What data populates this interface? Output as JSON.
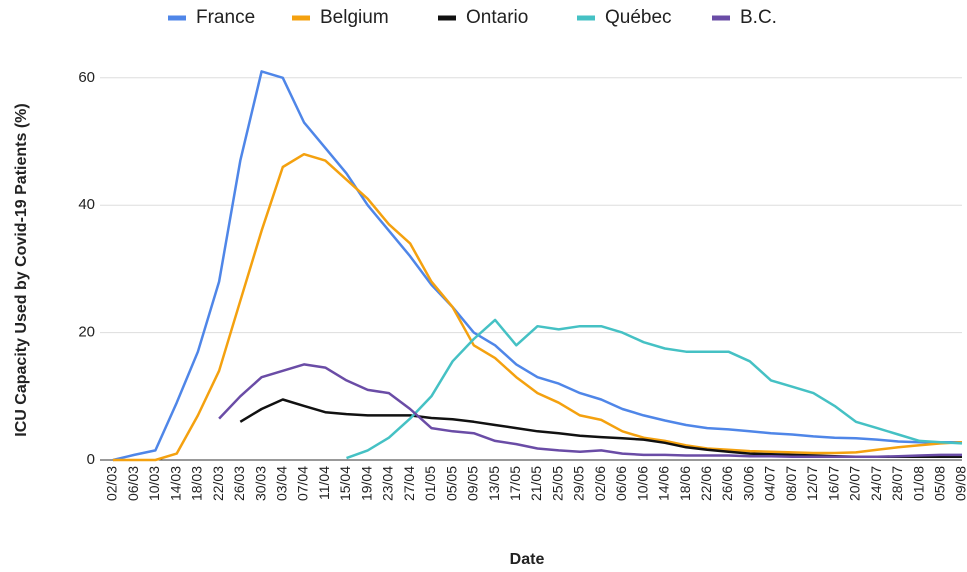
{
  "chart_data": {
    "type": "line",
    "x_label": "Date",
    "y_label": "ICU Capacity Used by Covid-19 Patients (%)",
    "categories": [
      "02/03",
      "06/03",
      "10/03",
      "14/03",
      "18/03",
      "22/03",
      "26/03",
      "30/03",
      "03/04",
      "07/04",
      "11/04",
      "15/04",
      "19/04",
      "23/04",
      "27/04",
      "01/05",
      "05/05",
      "09/05",
      "13/05",
      "17/05",
      "21/05",
      "25/05",
      "29/05",
      "02/06",
      "06/06",
      "10/06",
      "14/06",
      "18/06",
      "22/06",
      "26/06",
      "30/06",
      "04/07",
      "08/07",
      "12/07",
      "16/07",
      "20/07",
      "24/07",
      "28/07",
      "01/08",
      "05/08",
      "09/08"
    ],
    "series": [
      {
        "name": "France",
        "color": "#4f86e8",
        "values": [
          0,
          0.8,
          1.5,
          9,
          17,
          28,
          47,
          61,
          60,
          53,
          49,
          45,
          40,
          36,
          32,
          27.5,
          24,
          20,
          18,
          15,
          13,
          12,
          10.5,
          9.5,
          8,
          7,
          6.2,
          5.5,
          5,
          4.8,
          4.5,
          4.2,
          4,
          3.7,
          3.5,
          3.4,
          3.2,
          2.9,
          2.8,
          2.8,
          2.8
        ]
      },
      {
        "name": "Belgium",
        "color": "#f4a10f",
        "values": [
          0,
          0,
          0,
          1,
          7,
          14,
          25,
          36,
          46,
          48,
          47,
          44,
          41,
          37,
          34,
          28,
          24,
          18,
          16,
          13,
          10.5,
          9,
          7,
          6.3,
          4.5,
          3.5,
          3,
          2.3,
          1.8,
          1.6,
          1.4,
          1.3,
          1.2,
          1.1,
          1.1,
          1.2,
          1.6,
          2,
          2.3,
          2.6,
          2.8
        ]
      },
      {
        "name": "Ontario",
        "color": "#111111",
        "values": [
          null,
          null,
          null,
          null,
          null,
          null,
          6,
          8,
          9.5,
          8.5,
          7.5,
          7.2,
          7,
          7,
          7,
          6.6,
          6.4,
          6,
          5.5,
          5,
          4.5,
          4.2,
          3.8,
          3.6,
          3.4,
          3.2,
          2.7,
          2,
          1.6,
          1.3,
          1,
          0.9,
          0.8,
          0.7,
          0.6,
          0.5,
          0.5,
          0.5,
          0.5,
          0.5,
          0.5
        ]
      },
      {
        "name": "Québec",
        "color": "#45c1c4",
        "values": [
          null,
          null,
          null,
          null,
          null,
          null,
          null,
          null,
          null,
          null,
          null,
          0.3,
          1.5,
          3.5,
          6.5,
          10,
          15.5,
          19,
          22,
          18,
          21,
          20.5,
          21,
          21,
          20,
          18.5,
          17.5,
          17,
          17,
          17,
          15.5,
          12.5,
          11.5,
          10.5,
          8.5,
          6,
          5,
          4,
          3,
          2.8,
          2.6
        ]
      },
      {
        "name": "B.C.",
        "color": "#6a4ca6",
        "values": [
          null,
          null,
          null,
          null,
          null,
          6.5,
          10,
          13,
          14,
          15,
          14.5,
          12.5,
          11,
          10.5,
          8,
          5,
          4.5,
          4.2,
          3,
          2.5,
          1.8,
          1.5,
          1.3,
          1.5,
          1,
          0.8,
          0.8,
          0.7,
          0.7,
          0.7,
          0.6,
          0.6,
          0.5,
          0.5,
          0.5,
          0.5,
          0.5,
          0.6,
          0.7,
          0.8,
          0.8
        ]
      }
    ],
    "ylim": [
      0,
      65
    ],
    "yticks": [
      0,
      20,
      40,
      60
    ],
    "grid": true
  }
}
